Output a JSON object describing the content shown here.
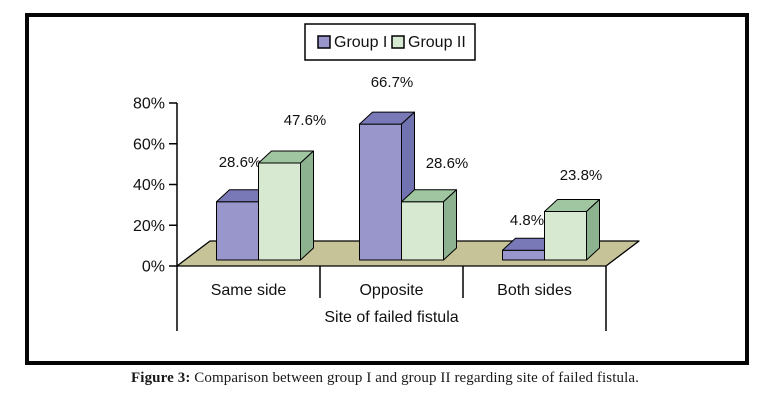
{
  "caption": {
    "prefix": "Figure 3:",
    "text": " Comparison between group I and group II regarding site of failed fistula."
  },
  "chart_data": {
    "type": "bar",
    "style": "3d-bar",
    "title": "",
    "categories": [
      "Same side",
      "Opposite",
      "Both sides"
    ],
    "series": [
      {
        "name": "Group I",
        "values": [
          28.6,
          66.7,
          4.8
        ],
        "data_labels": [
          "28.6%",
          "66.7%",
          "4.8%"
        ],
        "color": {
          "front": "#9896cb",
          "top": "#7a79b8",
          "side": "#7173b0"
        }
      },
      {
        "name": "Group II",
        "values": [
          47.6,
          28.6,
          23.8
        ],
        "data_labels": [
          "47.6%",
          "28.6%",
          "23.8%"
        ],
        "color": {
          "front": "#d7e9d0",
          "top": "#a0c6a1",
          "side": "#8db28f"
        }
      }
    ],
    "xlabel": "Site of failed fistula",
    "ylabel": "",
    "ylim": [
      0,
      80
    ],
    "ytick_values": [
      0,
      20,
      40,
      60,
      80
    ],
    "ytick_labels": [
      "0%",
      "20%",
      "40%",
      "60%",
      "80%"
    ],
    "legend_position": "top-center",
    "grid": false,
    "colors": {
      "floor": "#c7c398",
      "outline": "#000000",
      "axis": "#000000",
      "text": "#111111",
      "legend_background": "#ffffff",
      "frame_border": "#050505"
    }
  }
}
